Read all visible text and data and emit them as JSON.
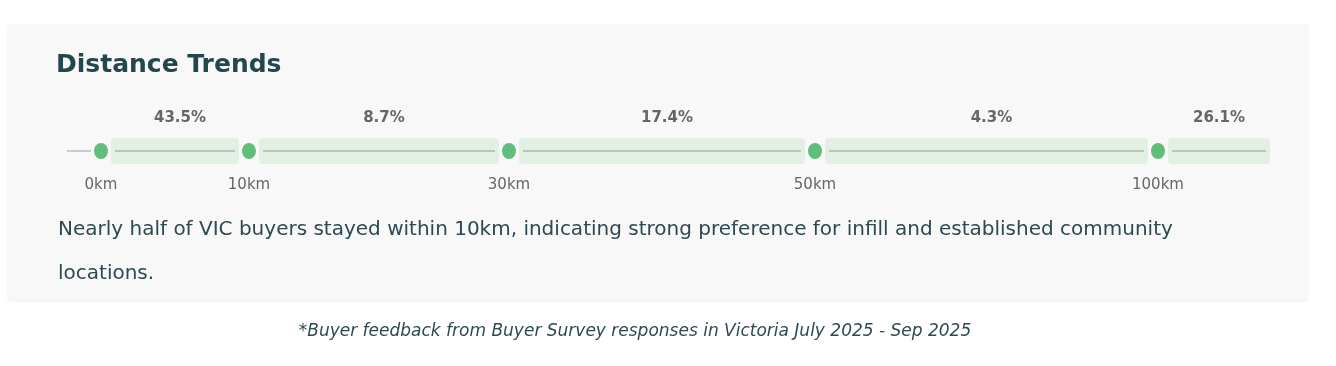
{
  "chart_data": {
    "type": "other",
    "title": "Distance Trends",
    "categories": [
      null,
      null,
      null,
      null,
      null
    ],
    "values": [
      43.5,
      8.7,
      17.4,
      4.3,
      26.1
    ],
    "value_labels": [
      "43.5%",
      "8.7%",
      "17.4%",
      "4.3%",
      "26.1%"
    ],
    "color": "#e2f0e4",
    "annotations": [
      "0km",
      "10km",
      "30km",
      "50km",
      "100km",
      "Nearly half of VIC buyers stayed within 10km, indicating strong preference for infill and established community locations.",
      "*Buyer feedback from Buyer Survey responses in Victoria July 2025 - Sep 2025"
    ]
  }
}
